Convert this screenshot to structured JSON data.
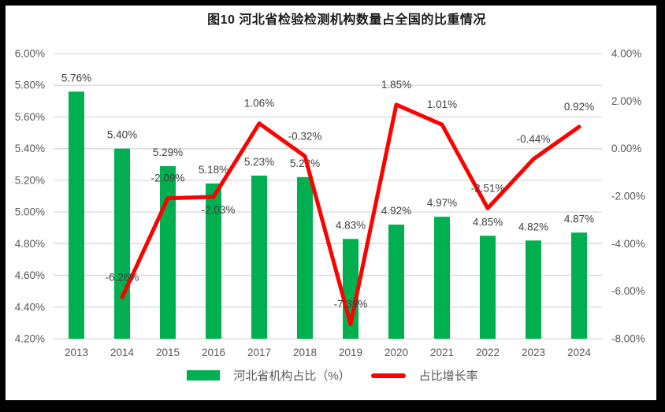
{
  "chart_data": {
    "type": "combo-bar-line",
    "title": "图10  河北省检验检测机构数量占全国的比重情况",
    "categories": [
      "2013",
      "2014",
      "2015",
      "2016",
      "2017",
      "2018",
      "2019",
      "2020",
      "2021",
      "2022",
      "2023",
      "2024"
    ],
    "series": [
      {
        "name": "河北省机构占比（%）",
        "type": "bar",
        "axis": "left",
        "color": "#00B050",
        "values": [
          5.76,
          5.4,
          5.29,
          5.18,
          5.23,
          5.22,
          4.83,
          4.92,
          4.97,
          4.85,
          4.82,
          4.87
        ]
      },
      {
        "name": "占比增长率",
        "type": "line",
        "axis": "right",
        "color": "#FF0000",
        "values": [
          null,
          -6.26,
          -2.09,
          -2.03,
          1.06,
          -0.32,
          -7.39,
          1.85,
          1.01,
          -2.51,
          -0.44,
          0.92
        ]
      }
    ],
    "left_axis": {
      "min": 4.2,
      "max": 6.0,
      "step": 0.2,
      "tick_suffix": "%"
    },
    "right_axis": {
      "min": -8.0,
      "max": 4.0,
      "step": 2.0,
      "tick_suffix": "%"
    },
    "grid": true,
    "legend_position": "bottom",
    "colors": {
      "grid": "#D9D9D9",
      "axis_text": "#595959",
      "data_label": "#404040",
      "background": "#FFFFFF",
      "frame": "#000000"
    }
  }
}
